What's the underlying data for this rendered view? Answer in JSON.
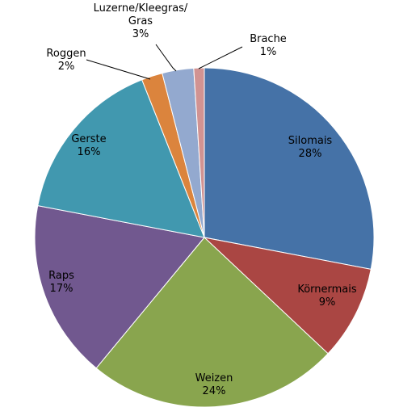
{
  "chart_data": {
    "type": "pie",
    "title": "",
    "legend": "none",
    "slices": [
      {
        "name": "Silomais",
        "value": 28,
        "label": "28%",
        "color": "#4572A7"
      },
      {
        "name": "Körnermais",
        "value": 9,
        "label": "9%",
        "color": "#AA4643"
      },
      {
        "name": "Weizen",
        "value": 24,
        "label": "24%",
        "color": "#89A54E"
      },
      {
        "name": "Raps",
        "value": 17,
        "label": "17%",
        "color": "#71588F"
      },
      {
        "name": "Gerste",
        "value": 16,
        "label": "16%",
        "color": "#4198AF"
      },
      {
        "name": "Roggen",
        "value": 2,
        "label": "2%",
        "color": "#DB843D"
      },
      {
        "name": "Luzerne/Kleegras/ Gras",
        "value": 3,
        "label": "3%",
        "color": "#93A9CF"
      },
      {
        "name": "Brache",
        "value": 1,
        "label": "1%",
        "color": "#D19392"
      }
    ]
  }
}
